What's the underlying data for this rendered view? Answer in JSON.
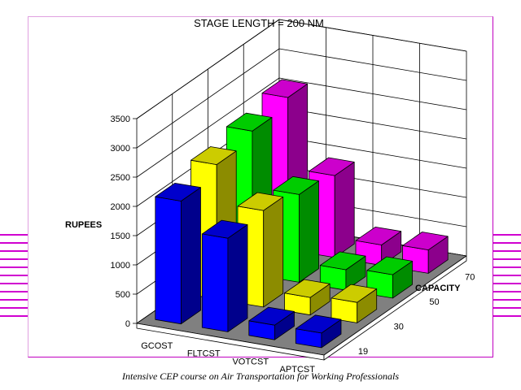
{
  "footer": "Intensive CEP course on Air Transportation for Working  Professionals",
  "colors": {
    "blue": "#0000ff",
    "yellow": "#ffff00",
    "green": "#00ff00",
    "magenta": "#ff00ff",
    "floor": "#808080",
    "frame": "#c000c0"
  },
  "chart_data": {
    "type": "bar3d",
    "title": "STAGE LENGTH = 200 NM",
    "ylabel": "RUPEES",
    "zlabel": "CAPACITY",
    "categories": [
      "GCOST",
      "FLTCST",
      "VOTCST",
      "APTCST"
    ],
    "ylim": [
      0,
      3500
    ],
    "yticks": [
      "0",
      "500",
      "1000",
      "1500",
      "2000",
      "2500",
      "3000",
      "3500"
    ],
    "grid": true,
    "series": [
      {
        "name": "19",
        "color": "blue",
        "values": [
          2100,
          1600,
          250,
          250
        ]
      },
      {
        "name": "30",
        "color": "yellow",
        "values": [
          2300,
          1650,
          300,
          350
        ]
      },
      {
        "name": "50",
        "color": "green",
        "values": [
          2450,
          1500,
          350,
          400
        ]
      },
      {
        "name": "70",
        "color": "magenta",
        "values": [
          2600,
          1400,
          350,
          400
        ]
      }
    ]
  }
}
